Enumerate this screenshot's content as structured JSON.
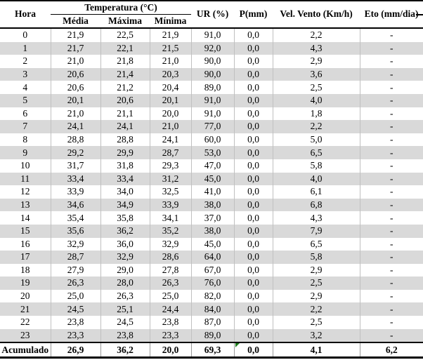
{
  "table": {
    "header": {
      "hora": "Hora",
      "temperatura_group": "Temperatura (°C)",
      "sub": [
        "Média",
        "Máxima",
        "Mínima"
      ],
      "ur": "UR (%)",
      "p": "P(mm)",
      "vel_vento": "Vel. Vento (Km/h)",
      "eto": "Eto (mm/dia)"
    },
    "rows": [
      [
        "0",
        "21,9",
        "22,5",
        "21,9",
        "91,0",
        "0,0",
        "2,2",
        "-"
      ],
      [
        "1",
        "21,7",
        "22,1",
        "21,5",
        "92,0",
        "0,0",
        "4,3",
        "-"
      ],
      [
        "2",
        "21,0",
        "21,8",
        "21,0",
        "90,0",
        "0,0",
        "2,9",
        "-"
      ],
      [
        "3",
        "20,6",
        "21,4",
        "20,3",
        "90,0",
        "0,0",
        "3,6",
        "-"
      ],
      [
        "4",
        "20,6",
        "21,2",
        "20,4",
        "89,0",
        "0,0",
        "2,5",
        "-"
      ],
      [
        "5",
        "20,1",
        "20,6",
        "20,1",
        "91,0",
        "0,0",
        "4,0",
        "-"
      ],
      [
        "6",
        "21,0",
        "21,1",
        "20,0",
        "91,0",
        "0,0",
        "1,8",
        "-"
      ],
      [
        "7",
        "24,1",
        "24,1",
        "21,0",
        "77,0",
        "0,0",
        "2,2",
        "-"
      ],
      [
        "8",
        "28,8",
        "28,8",
        "24,1",
        "60,0",
        "0,0",
        "5,0",
        "-"
      ],
      [
        "9",
        "29,2",
        "29,9",
        "28,7",
        "53,0",
        "0,0",
        "6,5",
        "-"
      ],
      [
        "10",
        "31,7",
        "31,8",
        "29,3",
        "47,0",
        "0,0",
        "5,8",
        "-"
      ],
      [
        "11",
        "33,4",
        "33,4",
        "31,2",
        "45,0",
        "0,0",
        "4,0",
        "-"
      ],
      [
        "12",
        "33,9",
        "34,0",
        "32,5",
        "41,0",
        "0,0",
        "6,1",
        "-"
      ],
      [
        "13",
        "34,6",
        "34,9",
        "33,9",
        "38,0",
        "0,0",
        "6,8",
        "-"
      ],
      [
        "14",
        "35,4",
        "35,8",
        "34,1",
        "37,0",
        "0,0",
        "4,3",
        "-"
      ],
      [
        "15",
        "35,6",
        "36,2",
        "35,2",
        "38,0",
        "0,0",
        "7,9",
        "-"
      ],
      [
        "16",
        "32,9",
        "36,0",
        "32,9",
        "45,0",
        "0,0",
        "6,5",
        "-"
      ],
      [
        "17",
        "28,7",
        "32,9",
        "28,6",
        "64,0",
        "0,0",
        "5,8",
        "-"
      ],
      [
        "18",
        "27,9",
        "29,0",
        "27,8",
        "67,0",
        "0,0",
        "2,9",
        "-"
      ],
      [
        "19",
        "26,3",
        "28,0",
        "26,3",
        "76,0",
        "0,0",
        "2,5",
        "-"
      ],
      [
        "20",
        "25,0",
        "26,3",
        "25,0",
        "82,0",
        "0,0",
        "2,9",
        "-"
      ],
      [
        "21",
        "24,5",
        "25,1",
        "24,4",
        "84,0",
        "0,0",
        "2,2",
        "-"
      ],
      [
        "22",
        "23,8",
        "24,5",
        "23,8",
        "87,0",
        "0,0",
        "2,5",
        "-"
      ],
      [
        "23",
        "23,3",
        "23,8",
        "23,3",
        "89,0",
        "0,0",
        "3,2",
        "-"
      ]
    ],
    "footer": [
      "Acumulado",
      "26,9",
      "36,2",
      "20,0",
      "69,3",
      "0,0",
      "4,1",
      "6,2"
    ]
  },
  "colors": {
    "border": "#000000",
    "row_alt": "#d9d9d9",
    "grid_line": "#c0c0c0",
    "grid_line_footer": "#9a9a9a",
    "error_indicator": "#1e7d1e"
  }
}
